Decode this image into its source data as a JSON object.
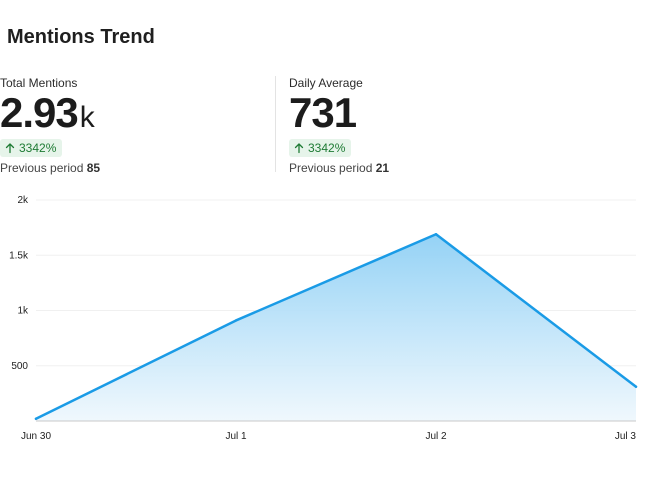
{
  "title": "Mentions Trend",
  "stats": {
    "total": {
      "label": "Total Mentions",
      "value": "2.93",
      "suffix": "k",
      "change": "3342%",
      "previous_label": "Previous period",
      "previous_value": "85"
    },
    "daily": {
      "label": "Daily Average",
      "value": "731",
      "suffix": "",
      "change": "3342%",
      "previous_label": "Previous period",
      "previous_value": "21"
    }
  },
  "colors": {
    "line": "#1a9be6",
    "area_top": "#8fd0f5",
    "area_bottom": "#eef7fd",
    "badge_bg": "#e6f4ea",
    "badge_text": "#1e7b34"
  },
  "chart_data": {
    "type": "area",
    "x": [
      "Jun 30",
      "Jul 1",
      "Jul 2",
      "Jul 3"
    ],
    "series": [
      {
        "values": [
          20,
          910,
          1690,
          310
        ]
      }
    ],
    "y_ticks": [
      500,
      1000,
      1500,
      2000
    ],
    "y_tick_labels": [
      "500",
      "1k",
      "1.5k",
      "2k"
    ],
    "ylim": [
      0,
      2000
    ],
    "grid": true,
    "legend": "none"
  }
}
